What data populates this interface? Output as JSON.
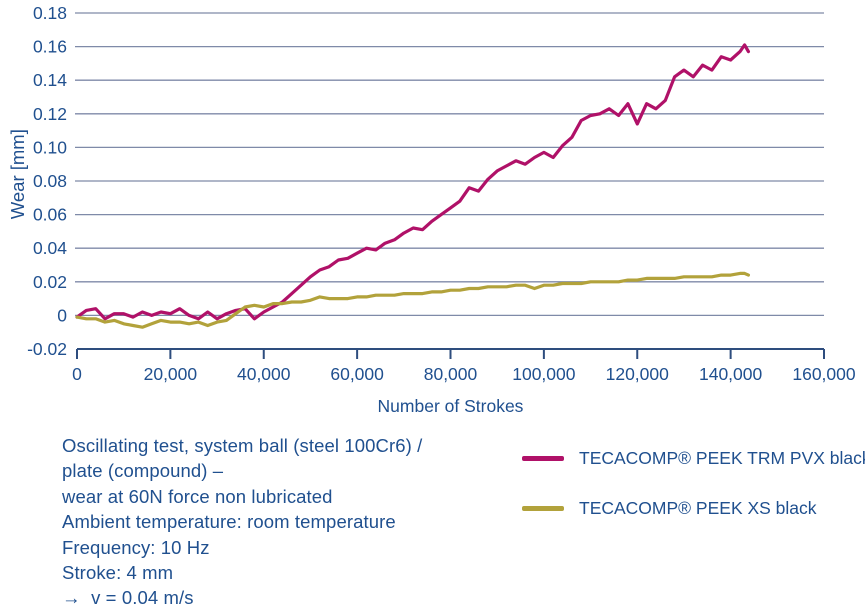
{
  "colors": {
    "text": "#20508f",
    "grid": "#7f8aa8",
    "axis": "#2e4d7e",
    "series_trm_pvx": "#b01168",
    "series_xs": "#b2a23b",
    "background": "#ffffff"
  },
  "chart_data": {
    "type": "line",
    "title": "",
    "xlabel": "Number of Strokes",
    "ylabel": "Wear [mm]",
    "xlim": [
      0,
      160000
    ],
    "ylim": [
      -0.02,
      0.18
    ],
    "grid": "horizontal",
    "legend_position": "bottom-right",
    "x_ticks": [
      {
        "value": 0,
        "label": "0"
      },
      {
        "value": 20000,
        "label": "20,000"
      },
      {
        "value": 40000,
        "label": "40,000"
      },
      {
        "value": 60000,
        "label": "60,000"
      },
      {
        "value": 80000,
        "label": "80,000"
      },
      {
        "value": 100000,
        "label": "100,000"
      },
      {
        "value": 120000,
        "label": "120,000"
      },
      {
        "value": 140000,
        "label": "140,000"
      },
      {
        "value": 160000,
        "label": "160,000"
      }
    ],
    "y_ticks": [
      {
        "value": 0.18,
        "label": "0.18"
      },
      {
        "value": 0.16,
        "label": "0.16"
      },
      {
        "value": 0.14,
        "label": "0.14"
      },
      {
        "value": 0.12,
        "label": "0.12"
      },
      {
        "value": 0.1,
        "label": "0.10"
      },
      {
        "value": 0.08,
        "label": "0.08"
      },
      {
        "value": 0.06,
        "label": "0.06"
      },
      {
        "value": 0.04,
        "label": "0.04"
      },
      {
        "value": 0.02,
        "label": "0.02"
      },
      {
        "value": 0.0,
        "label": "0"
      },
      {
        "value": -0.02,
        "label": "-0.02"
      }
    ],
    "series": [
      {
        "name": "TECACOMP® PEEK TRM PVX black",
        "color": "#b01168",
        "x": [
          0,
          2000,
          4000,
          6000,
          8000,
          10000,
          12000,
          14000,
          16000,
          18000,
          20000,
          22000,
          24000,
          26000,
          28000,
          30000,
          32000,
          34000,
          36000,
          38000,
          40000,
          42000,
          44000,
          46000,
          48000,
          50000,
          52000,
          54000,
          56000,
          58000,
          60000,
          62000,
          64000,
          66000,
          68000,
          70000,
          72000,
          74000,
          76000,
          78000,
          80000,
          82000,
          84000,
          86000,
          88000,
          90000,
          92000,
          94000,
          96000,
          98000,
          100000,
          102000,
          104000,
          106000,
          108000,
          110000,
          112000,
          114000,
          116000,
          118000,
          120000,
          122000,
          124000,
          126000,
          128000,
          130000,
          132000,
          134000,
          136000,
          138000,
          140000,
          142000,
          143000,
          143800
        ],
        "y": [
          -0.001,
          0.003,
          0.004,
          -0.002,
          0.001,
          0.001,
          -0.001,
          0.002,
          0.0,
          0.002,
          0.001,
          0.004,
          0.0,
          -0.002,
          0.002,
          -0.002,
          0.001,
          0.003,
          0.004,
          -0.002,
          0.002,
          0.005,
          0.008,
          0.013,
          0.018,
          0.023,
          0.027,
          0.029,
          0.033,
          0.034,
          0.037,
          0.04,
          0.039,
          0.043,
          0.045,
          0.049,
          0.052,
          0.051,
          0.056,
          0.06,
          0.064,
          0.068,
          0.076,
          0.074,
          0.081,
          0.086,
          0.089,
          0.092,
          0.09,
          0.094,
          0.097,
          0.094,
          0.101,
          0.106,
          0.116,
          0.119,
          0.12,
          0.123,
          0.119,
          0.126,
          0.114,
          0.126,
          0.123,
          0.128,
          0.142,
          0.146,
          0.142,
          0.149,
          0.146,
          0.154,
          0.152,
          0.157,
          0.161,
          0.157
        ]
      },
      {
        "name": "TECACOMP® PEEK XS black",
        "color": "#b2a23b",
        "x": [
          0,
          2000,
          4000,
          6000,
          8000,
          10000,
          12000,
          14000,
          16000,
          18000,
          20000,
          22000,
          24000,
          26000,
          28000,
          30000,
          32000,
          34000,
          36000,
          38000,
          40000,
          42000,
          44000,
          46000,
          48000,
          50000,
          52000,
          54000,
          56000,
          58000,
          60000,
          62000,
          64000,
          66000,
          68000,
          70000,
          72000,
          74000,
          76000,
          78000,
          80000,
          82000,
          84000,
          86000,
          88000,
          90000,
          92000,
          94000,
          96000,
          98000,
          100000,
          102000,
          104000,
          106000,
          108000,
          110000,
          112000,
          114000,
          116000,
          118000,
          120000,
          122000,
          124000,
          126000,
          128000,
          130000,
          132000,
          134000,
          136000,
          138000,
          140000,
          142000,
          143000,
          143800
        ],
        "y": [
          -0.001,
          -0.002,
          -0.002,
          -0.004,
          -0.003,
          -0.005,
          -0.006,
          -0.007,
          -0.005,
          -0.003,
          -0.004,
          -0.004,
          -0.005,
          -0.004,
          -0.006,
          -0.004,
          -0.003,
          0.001,
          0.005,
          0.006,
          0.005,
          0.007,
          0.007,
          0.008,
          0.008,
          0.009,
          0.011,
          0.01,
          0.01,
          0.01,
          0.011,
          0.011,
          0.012,
          0.012,
          0.012,
          0.013,
          0.013,
          0.013,
          0.014,
          0.014,
          0.015,
          0.015,
          0.016,
          0.016,
          0.017,
          0.017,
          0.017,
          0.018,
          0.018,
          0.016,
          0.018,
          0.018,
          0.019,
          0.019,
          0.019,
          0.02,
          0.02,
          0.02,
          0.02,
          0.021,
          0.021,
          0.022,
          0.022,
          0.022,
          0.022,
          0.023,
          0.023,
          0.023,
          0.023,
          0.024,
          0.024,
          0.025,
          0.025,
          0.024
        ]
      }
    ]
  },
  "legend": {
    "items": [
      {
        "label": "TECACOMP® PEEK TRM PVX black"
      },
      {
        "label": "TECACOMP® PEEK XS black"
      }
    ]
  },
  "caption": {
    "lines": [
      "Oscillating test, system ball (steel 100Cr6) /",
      "plate (compound) –",
      "wear at 60N force non lubricated",
      "Ambient temperature: room temperature",
      "Frequency: 10 Hz",
      "Stroke: 4 mm",
      "→  v = 0.04 m/s"
    ]
  }
}
